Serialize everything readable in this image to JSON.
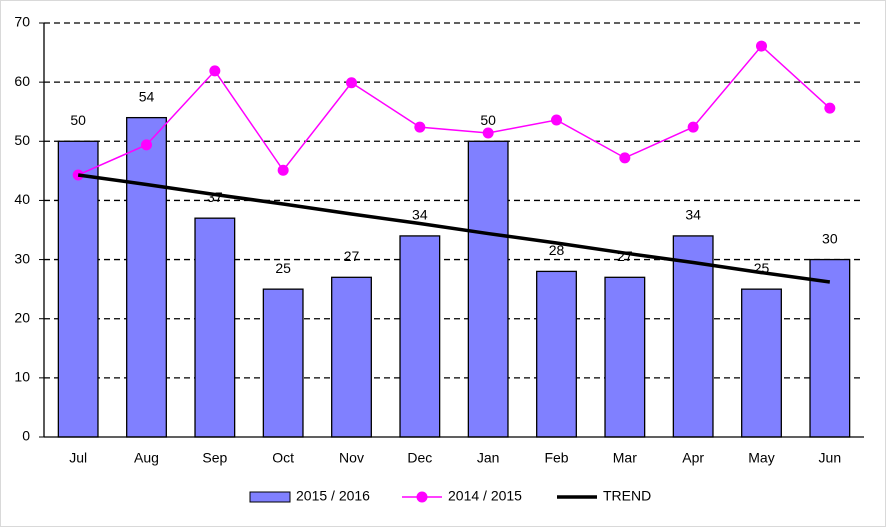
{
  "chart_data": {
    "type": "bar",
    "categories": [
      "Jul",
      "Aug",
      "Sep",
      "Oct",
      "Nov",
      "Dec",
      "Jan",
      "Feb",
      "Mar",
      "Apr",
      "May",
      "Jun"
    ],
    "series": [
      {
        "name": "2015 / 2016",
        "type": "bar",
        "color": "#8080ff",
        "values": [
          50,
          54,
          37,
          25,
          27,
          34,
          50,
          28,
          27,
          34,
          25,
          30
        ]
      },
      {
        "name": "2014 / 2015",
        "type": "line",
        "color": "#ff00ff",
        "marker": true,
        "values": [
          44.3,
          49.4,
          61.9,
          45.1,
          59.9,
          52.4,
          51.4,
          53.6,
          47.2,
          52.4,
          66.1,
          55.6
        ]
      },
      {
        "name": "TREND",
        "type": "line",
        "color": "#000000",
        "marker": false,
        "values": [
          44.3,
          42.7,
          41.0,
          39.4,
          37.7,
          36.1,
          34.4,
          32.8,
          31.1,
          29.5,
          27.8,
          26.2
        ]
      }
    ],
    "ylim": [
      0,
      70
    ],
    "yticks": [
      0,
      10,
      20,
      30,
      40,
      50,
      60,
      70
    ],
    "grid": true,
    "legend": "bottom"
  }
}
